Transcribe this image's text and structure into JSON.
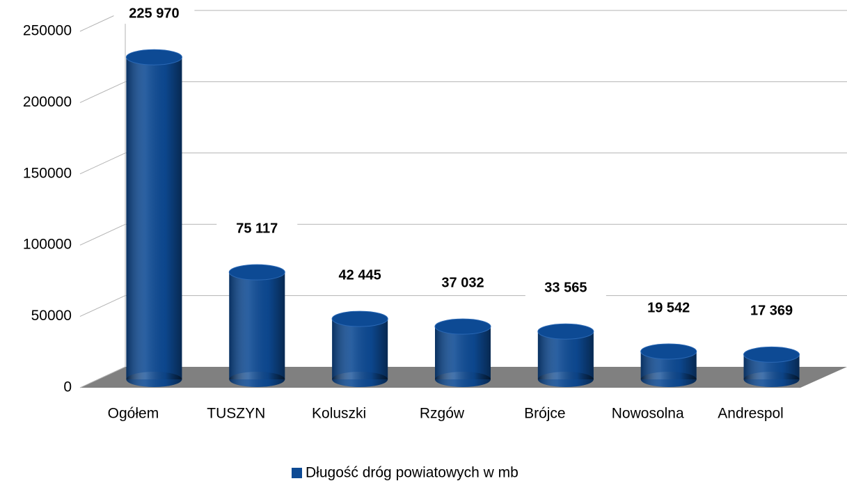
{
  "chart_data": {
    "type": "bar",
    "categories": [
      "Ogółem",
      "TUSZYN",
      "Koluszki",
      "Rzgów",
      "Brójce",
      "Nowosolna",
      "Andrespol"
    ],
    "series": [
      {
        "name": "Długość dróg powiatowych w mb",
        "color": "#0d4a94",
        "values": [
          225970,
          75117,
          42445,
          37032,
          33565,
          19542,
          17369
        ],
        "value_labels": [
          "225 970",
          "75 117",
          "42 445",
          "37 032",
          "33 565",
          "19 542",
          "17 369"
        ]
      }
    ],
    "ylim": [
      0,
      250000
    ],
    "yticks": [
      0,
      50000,
      100000,
      150000,
      200000,
      250000
    ],
    "grid": true,
    "legend": "bottom"
  }
}
